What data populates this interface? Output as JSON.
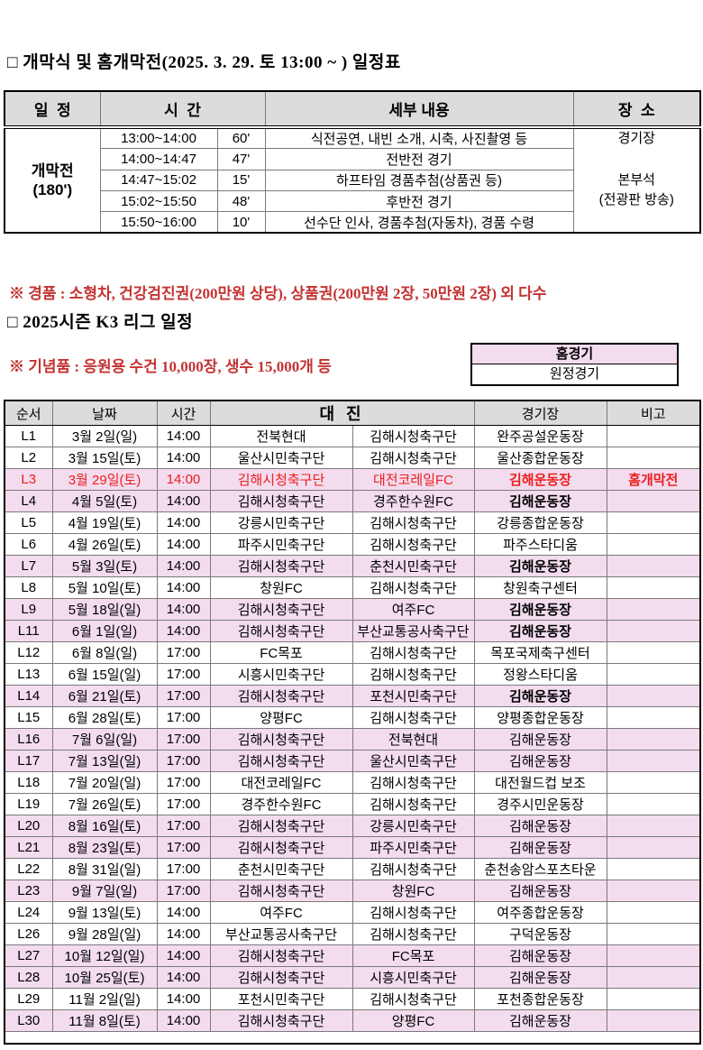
{
  "colors": {
    "highlight_pink": "#F2DCEE",
    "accent_red": "#EE1C1C",
    "note_red": "#C43333",
    "header_gray": "#DCDCDC"
  },
  "titles": {
    "opening": "□ 개막식 및 홈개막전(2025. 3. 29. 토 13:00 ~ ) 일정표",
    "league": "□ 2025시즌 K3 리그 일정"
  },
  "opening_table": {
    "headers": {
      "schedule": "일  정",
      "time": "시  간",
      "details": "세부 내용",
      "place": "장  소"
    },
    "event_label": "개막전",
    "event_duration": "(180')",
    "rows": [
      {
        "time": "13:00~14:00",
        "dur": "60'",
        "detail": "식전공연, 내빈 소개, 시축, 사진촬영 등"
      },
      {
        "time": "14:00~14:47",
        "dur": "47'",
        "detail": "전반전 경기"
      },
      {
        "time": "14:47~15:02",
        "dur": "15'",
        "detail": "하프타임 경품추첨(상품권 등)"
      },
      {
        "time": "15:02~15:50",
        "dur": "48'",
        "detail": "후반전 경기"
      },
      {
        "time": "15:50~16:00",
        "dur": "10'",
        "detail": "선수단 인사, 경품추첨(자동차), 경품 수령"
      }
    ],
    "place_lines": [
      "경기장",
      "",
      "본부석",
      "(전광판 방송)",
      ""
    ]
  },
  "notes": [
    "※ 경품 : 소형차, 건강검진권(200만원 상당), 상품권(200만원 2장, 50만원 2장) 외 다수",
    "※ 기념품 : 응원용 수건 10,000장, 생수 15,000개 등"
  ],
  "legend": {
    "home": "홈경기",
    "away": "원정경기"
  },
  "league_table": {
    "headers": {
      "no": "순서",
      "date": "날짜",
      "time": "시간",
      "matchup": "대 진",
      "stadium": "경기장",
      "note": "비고"
    },
    "rows": [
      {
        "no": "L1",
        "date": "3월 2일(일)",
        "time": "14:00",
        "home": "전북현대",
        "away": "김해시청축구단",
        "stadium": "완주공설운동장",
        "note": "",
        "highlight": false,
        "red": false,
        "stadium_bold": false
      },
      {
        "no": "L2",
        "date": "3월 15일(토)",
        "time": "14:00",
        "home": "울산시민축구단",
        "away": "김해시청축구단",
        "stadium": "울산종합운동장",
        "note": "",
        "highlight": false,
        "red": false,
        "stadium_bold": false
      },
      {
        "no": "L3",
        "date": "3월 29일(토)",
        "time": "14:00",
        "home": "김해시청축구단",
        "away": "대전코레일FC",
        "stadium": "김해운동장",
        "note": "홈개막전",
        "highlight": true,
        "red": true,
        "stadium_bold": true
      },
      {
        "no": "L4",
        "date": "4월 5일(토)",
        "time": "14:00",
        "home": "김해시청축구단",
        "away": "경주한수원FC",
        "stadium": "김해운동장",
        "note": "",
        "highlight": true,
        "red": false,
        "stadium_bold": true
      },
      {
        "no": "L5",
        "date": "4월 19일(토)",
        "time": "14:00",
        "home": "강릉시민축구단",
        "away": "김해시청축구단",
        "stadium": "강릉종합운동장",
        "note": "",
        "highlight": false,
        "red": false,
        "stadium_bold": false
      },
      {
        "no": "L6",
        "date": "4월 26일(토)",
        "time": "14:00",
        "home": "파주시민축구단",
        "away": "김해시청축구단",
        "stadium": "파주스타디움",
        "note": "",
        "highlight": false,
        "red": false,
        "stadium_bold": false
      },
      {
        "no": "L7",
        "date": "5월 3일(토)",
        "time": "14:00",
        "home": "김해시청축구단",
        "away": "춘천시민축구단",
        "stadium": "김해운동장",
        "note": "",
        "highlight": true,
        "red": false,
        "stadium_bold": true
      },
      {
        "no": "L8",
        "date": "5월 10일(토)",
        "time": "14:00",
        "home": "창원FC",
        "away": "김해시청축구단",
        "stadium": "창원축구센터",
        "note": "",
        "highlight": false,
        "red": false,
        "stadium_bold": false
      },
      {
        "no": "L9",
        "date": "5월 18일(일)",
        "time": "14:00",
        "home": "김해시청축구단",
        "away": "여주FC",
        "stadium": "김해운동장",
        "note": "",
        "highlight": true,
        "red": false,
        "stadium_bold": true
      },
      {
        "no": "L11",
        "date": "6월 1일(일)",
        "time": "14:00",
        "home": "김해시청축구단",
        "away": "부산교통공사축구단",
        "stadium": "김해운동장",
        "note": "",
        "highlight": true,
        "red": false,
        "stadium_bold": true
      },
      {
        "no": "L12",
        "date": "6월 8일(일)",
        "time": "17:00",
        "home": "FC목포",
        "away": "김해시청축구단",
        "stadium": "목포국제축구센터",
        "note": "",
        "highlight": false,
        "red": false,
        "stadium_bold": false
      },
      {
        "no": "L13",
        "date": "6월 15일(일)",
        "time": "17:00",
        "home": "시흥시민축구단",
        "away": "김해시청축구단",
        "stadium": "정왕스타디움",
        "note": "",
        "highlight": false,
        "red": false,
        "stadium_bold": false
      },
      {
        "no": "L14",
        "date": "6월 21일(토)",
        "time": "17:00",
        "home": "김해시청축구단",
        "away": "포천시민축구단",
        "stadium": "김해운동장",
        "note": "",
        "highlight": true,
        "red": false,
        "stadium_bold": true
      },
      {
        "no": "L15",
        "date": "6월 28일(토)",
        "time": "17:00",
        "home": "양평FC",
        "away": "김해시청축구단",
        "stadium": "양평종합운동장",
        "note": "",
        "highlight": false,
        "red": false,
        "stadium_bold": false
      },
      {
        "no": "L16",
        "date": "7월 6일(일)",
        "time": "17:00",
        "home": "김해시청축구단",
        "away": "전북현대",
        "stadium": "김해운동장",
        "note": "",
        "highlight": true,
        "red": false,
        "stadium_bold": false
      },
      {
        "no": "L17",
        "date": "7월 13일(일)",
        "time": "17:00",
        "home": "김해시청축구단",
        "away": "울산시민축구단",
        "stadium": "김해운동장",
        "note": "",
        "highlight": true,
        "red": false,
        "stadium_bold": false
      },
      {
        "no": "L18",
        "date": "7월 20일(일)",
        "time": "17:00",
        "home": "대전코레일FC",
        "away": "김해시청축구단",
        "stadium": "대전월드컵 보조",
        "note": "",
        "highlight": false,
        "red": false,
        "stadium_bold": false
      },
      {
        "no": "L19",
        "date": "7월 26일(토)",
        "time": "17:00",
        "home": "경주한수원FC",
        "away": "김해시청축구단",
        "stadium": "경주시민운동장",
        "note": "",
        "highlight": false,
        "red": false,
        "stadium_bold": false
      },
      {
        "no": "L20",
        "date": "8월 16일(토)",
        "time": "17:00",
        "home": "김해시청축구단",
        "away": "강릉시민축구단",
        "stadium": "김해운동장",
        "note": "",
        "highlight": true,
        "red": false,
        "stadium_bold": false
      },
      {
        "no": "L21",
        "date": "8월 23일(토)",
        "time": "17:00",
        "home": "김해시청축구단",
        "away": "파주시민축구단",
        "stadium": "김해운동장",
        "note": "",
        "highlight": true,
        "red": false,
        "stadium_bold": false
      },
      {
        "no": "L22",
        "date": "8월 31일(일)",
        "time": "17:00",
        "home": "춘천시민축구단",
        "away": "김해시청축구단",
        "stadium": "춘천송암스포츠타운",
        "note": "",
        "highlight": false,
        "red": false,
        "stadium_bold": false
      },
      {
        "no": "L23",
        "date": "9월 7일(일)",
        "time": "17:00",
        "home": "김해시청축구단",
        "away": "창원FC",
        "stadium": "김해운동장",
        "note": "",
        "highlight": true,
        "red": false,
        "stadium_bold": false
      },
      {
        "no": "L24",
        "date": "9월 13일(토)",
        "time": "14:00",
        "home": "여주FC",
        "away": "김해시청축구단",
        "stadium": "여주종합운동장",
        "note": "",
        "highlight": false,
        "red": false,
        "stadium_bold": false
      },
      {
        "no": "L26",
        "date": "9월 28일(일)",
        "time": "14:00",
        "home": "부산교통공사축구단",
        "away": "김해시청축구단",
        "stadium": "구덕운동장",
        "note": "",
        "highlight": false,
        "red": false,
        "stadium_bold": false
      },
      {
        "no": "L27",
        "date": "10월 12일(일)",
        "time": "14:00",
        "home": "김해시청축구단",
        "away": "FC목포",
        "stadium": "김해운동장",
        "note": "",
        "highlight": true,
        "red": false,
        "stadium_bold": false
      },
      {
        "no": "L28",
        "date": "10월 25일(토)",
        "time": "14:00",
        "home": "김해시청축구단",
        "away": "시흥시민축구단",
        "stadium": "김해운동장",
        "note": "",
        "highlight": true,
        "red": false,
        "stadium_bold": false
      },
      {
        "no": "L29",
        "date": "11월 2일(일)",
        "time": "14:00",
        "home": "포천시민축구단",
        "away": "김해시청축구단",
        "stadium": "포천종합운동장",
        "note": "",
        "highlight": false,
        "red": false,
        "stadium_bold": false
      },
      {
        "no": "L30",
        "date": "11월 8일(토)",
        "time": "14:00",
        "home": "김해시청축구단",
        "away": "양평FC",
        "stadium": "김해운동장",
        "note": "",
        "highlight": true,
        "red": false,
        "stadium_bold": false
      }
    ]
  }
}
